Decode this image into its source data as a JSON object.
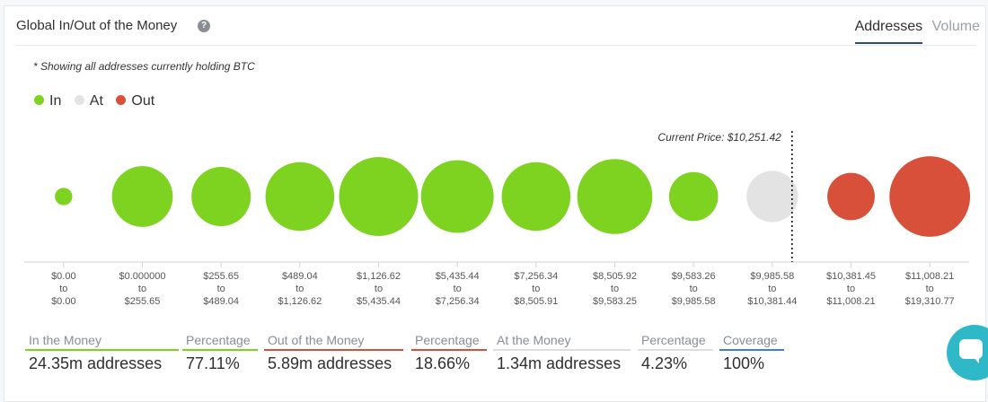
{
  "header": {
    "title": "Global In/Out of the Money",
    "help_icon": "question-circle-icon",
    "tabs": [
      {
        "label": "Addresses",
        "active": true
      },
      {
        "label": "Volume",
        "active": false
      }
    ]
  },
  "note": "* Showing all addresses currently holding BTC",
  "legend": [
    {
      "label": "In",
      "color": "#7ed321"
    },
    {
      "label": "At",
      "color": "#e3e3e3"
    },
    {
      "label": "Out",
      "color": "#d9503a"
    }
  ],
  "chart_data": {
    "type": "bubble",
    "current_price_label": "Current Price: $10,251.42",
    "current_price_bucket_index": 9,
    "buckets": [
      {
        "from": "$0.00",
        "to": "$0.00",
        "status": "in",
        "relative_size": 0.22
      },
      {
        "from": "$0.000000",
        "to": "$255.65",
        "status": "in",
        "relative_size": 0.77
      },
      {
        "from": "$255.65",
        "to": "$489.04",
        "status": "in",
        "relative_size": 0.75
      },
      {
        "from": "$489.04",
        "to": "$1,126.62",
        "status": "in",
        "relative_size": 0.87
      },
      {
        "from": "$1,126.62",
        "to": "$5,435.44",
        "status": "in",
        "relative_size": 1.0
      },
      {
        "from": "$5,435.44",
        "to": "$7,256.34",
        "status": "in",
        "relative_size": 0.92
      },
      {
        "from": "$7,256.34",
        "to": "$8,505.91",
        "status": "in",
        "relative_size": 0.87
      },
      {
        "from": "$8,505.92",
        "to": "$9,583.25",
        "status": "in",
        "relative_size": 0.95
      },
      {
        "from": "$9,583.26",
        "to": "$9,985.58",
        "status": "in",
        "relative_size": 0.62
      },
      {
        "from": "$9,985.58",
        "to": "$10,381.44",
        "status": "at",
        "relative_size": 0.65
      },
      {
        "from": "$10,381.45",
        "to": "$11,008.21",
        "status": "out",
        "relative_size": 0.6
      },
      {
        "from": "$11,008.21",
        "to": "$19,310.77",
        "status": "out",
        "relative_size": 1.02
      }
    ],
    "range_connector": "to"
  },
  "stats": [
    {
      "label": "In the Money",
      "value": "24.35m addresses",
      "color": "#7ed321"
    },
    {
      "label": "Percentage",
      "value": "77.11%",
      "color": "#7ed321"
    },
    {
      "label": "Out of the Money",
      "value": "5.89m addresses",
      "color": "#d9503a"
    },
    {
      "label": "Percentage",
      "value": "18.66%",
      "color": "#d9503a"
    },
    {
      "label": "At the Money",
      "value": "1.34m addresses",
      "color": "#dddddd"
    },
    {
      "label": "Percentage",
      "value": "4.23%",
      "color": "#dddddd"
    },
    {
      "label": "Coverage",
      "value": "100%",
      "color": "#3d7fdc"
    }
  ],
  "chat": {
    "icon": "chat-bubble-icon"
  }
}
